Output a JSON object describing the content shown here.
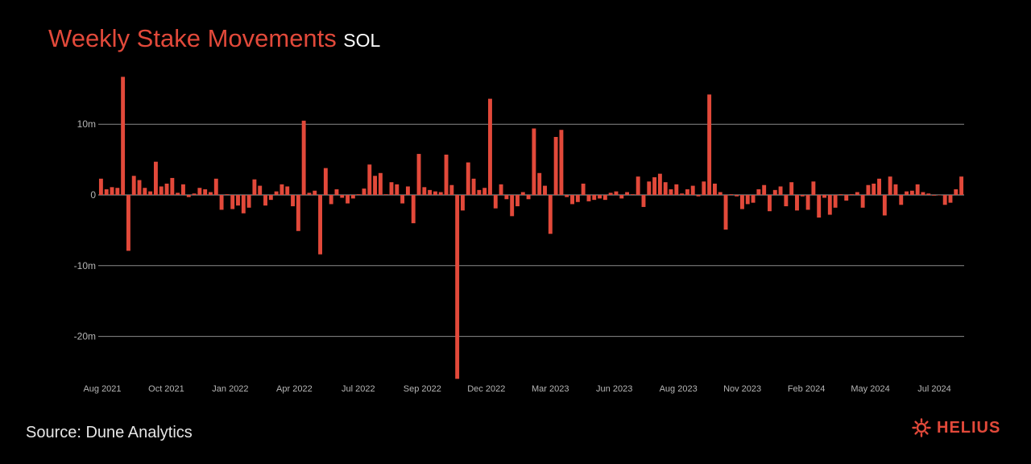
{
  "header": {
    "title": "Weekly Stake Movements",
    "unit": "SOL"
  },
  "footer": {
    "source": "Source: Dune Analytics",
    "brand": "HELIUS"
  },
  "colors": {
    "bar": "#e2493a",
    "accent": "#e2493a",
    "background": "#000000",
    "grid": "#8a8a8a"
  },
  "chart_data": {
    "type": "bar",
    "title": "Weekly Stake Movements",
    "unit": "SOL",
    "ylim": [
      -26,
      17
    ],
    "y_ticks": [
      10,
      0,
      -10,
      -20
    ],
    "y_tick_labels": [
      "10m",
      "0",
      "-10m",
      "-20m"
    ],
    "grid": "horizontal",
    "x_tick_labels": [
      "Aug 2021",
      "Oct 2021",
      "Jan 2022",
      "Apr 2022",
      "Jul 2022",
      "Sep 2022",
      "Dec 2022",
      "Mar 2023",
      "Jun 2023",
      "Aug 2023",
      "Nov 2023",
      "Feb 2024",
      "May 2024",
      "Jul 2024"
    ],
    "series": [
      {
        "values": [
          2.3,
          0.8,
          1.1,
          1.0,
          16.7,
          -7.9,
          2.7,
          2.1,
          1.0,
          0.5,
          4.7,
          1.2,
          1.6,
          2.4,
          0.3,
          1.5,
          -0.3,
          0.2,
          1.0,
          0.8,
          0.4,
          2.3,
          -2.1,
          0.1,
          -2.0,
          -1.5,
          -2.6,
          -1.8,
          2.2,
          1.3,
          -1.5,
          -0.7,
          0.5,
          1.5,
          1.2,
          -1.6,
          -5.1,
          10.5,
          0.3,
          0.6,
          -8.4,
          3.8,
          -1.3,
          0.8,
          -0.4,
          -1.2,
          -0.5,
          0.1,
          0.9,
          4.3,
          2.7,
          3.1,
          0.1,
          1.8,
          1.5,
          -1.2,
          1.2,
          -4.0,
          5.8,
          1.1,
          0.7,
          0.5,
          0.4,
          5.7,
          1.4,
          -26.0,
          -2.2,
          4.6,
          2.3,
          0.7,
          1.0,
          13.6,
          -1.9,
          1.5,
          -0.6,
          -3.0,
          -1.6,
          0.4,
          -0.6,
          9.4,
          3.1,
          1.3,
          -5.5,
          8.2,
          9.2,
          -0.3,
          -1.3,
          -1.0,
          1.6,
          -0.9,
          -0.7,
          -0.5,
          -0.7,
          0.3,
          0.5,
          -0.5,
          0.4,
          0.1,
          2.6,
          -1.7,
          1.9,
          2.5,
          3.0,
          1.8,
          0.8,
          1.5,
          0.2,
          0.8,
          1.3,
          -0.2,
          1.9,
          14.2,
          1.6,
          0.4,
          -4.9,
          0.1,
          -0.2,
          -2.0,
          -1.3,
          -1.1,
          0.8,
          1.4,
          -2.3,
          0.7,
          1.2,
          -1.6,
          1.8,
          -2.2,
          -0.2,
          -2.1,
          1.9,
          -3.2,
          -0.4,
          -2.8,
          -1.8,
          0.1,
          -0.8,
          0.1,
          0.4,
          -1.8,
          1.4,
          1.6,
          2.3,
          -2.9,
          2.6,
          1.5,
          -1.4,
          0.5,
          0.6,
          1.5,
          0.4,
          0.2,
          -0.1,
          0.0,
          -1.4,
          -1.1,
          0.8,
          2.6
        ]
      }
    ]
  }
}
